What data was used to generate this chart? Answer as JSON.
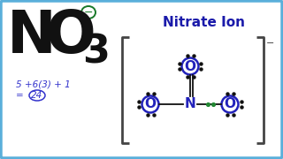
{
  "bg_color": "#ffffff",
  "border_color": "#5aafda",
  "title": "Nitrate Ion",
  "title_color": "#1a1aaa",
  "no3_color": "#111111",
  "charge_color": "#1a7a2a",
  "calc_color": "#3333cc",
  "dot_color": "#111111",
  "oxygen_color": "#2222bb",
  "nitrogen_color": "#2222bb",
  "green_dot_color": "#228833",
  "bracket_color": "#444444",
  "calc_text1": "5 +6(3) + 1",
  "calc_val": "24"
}
